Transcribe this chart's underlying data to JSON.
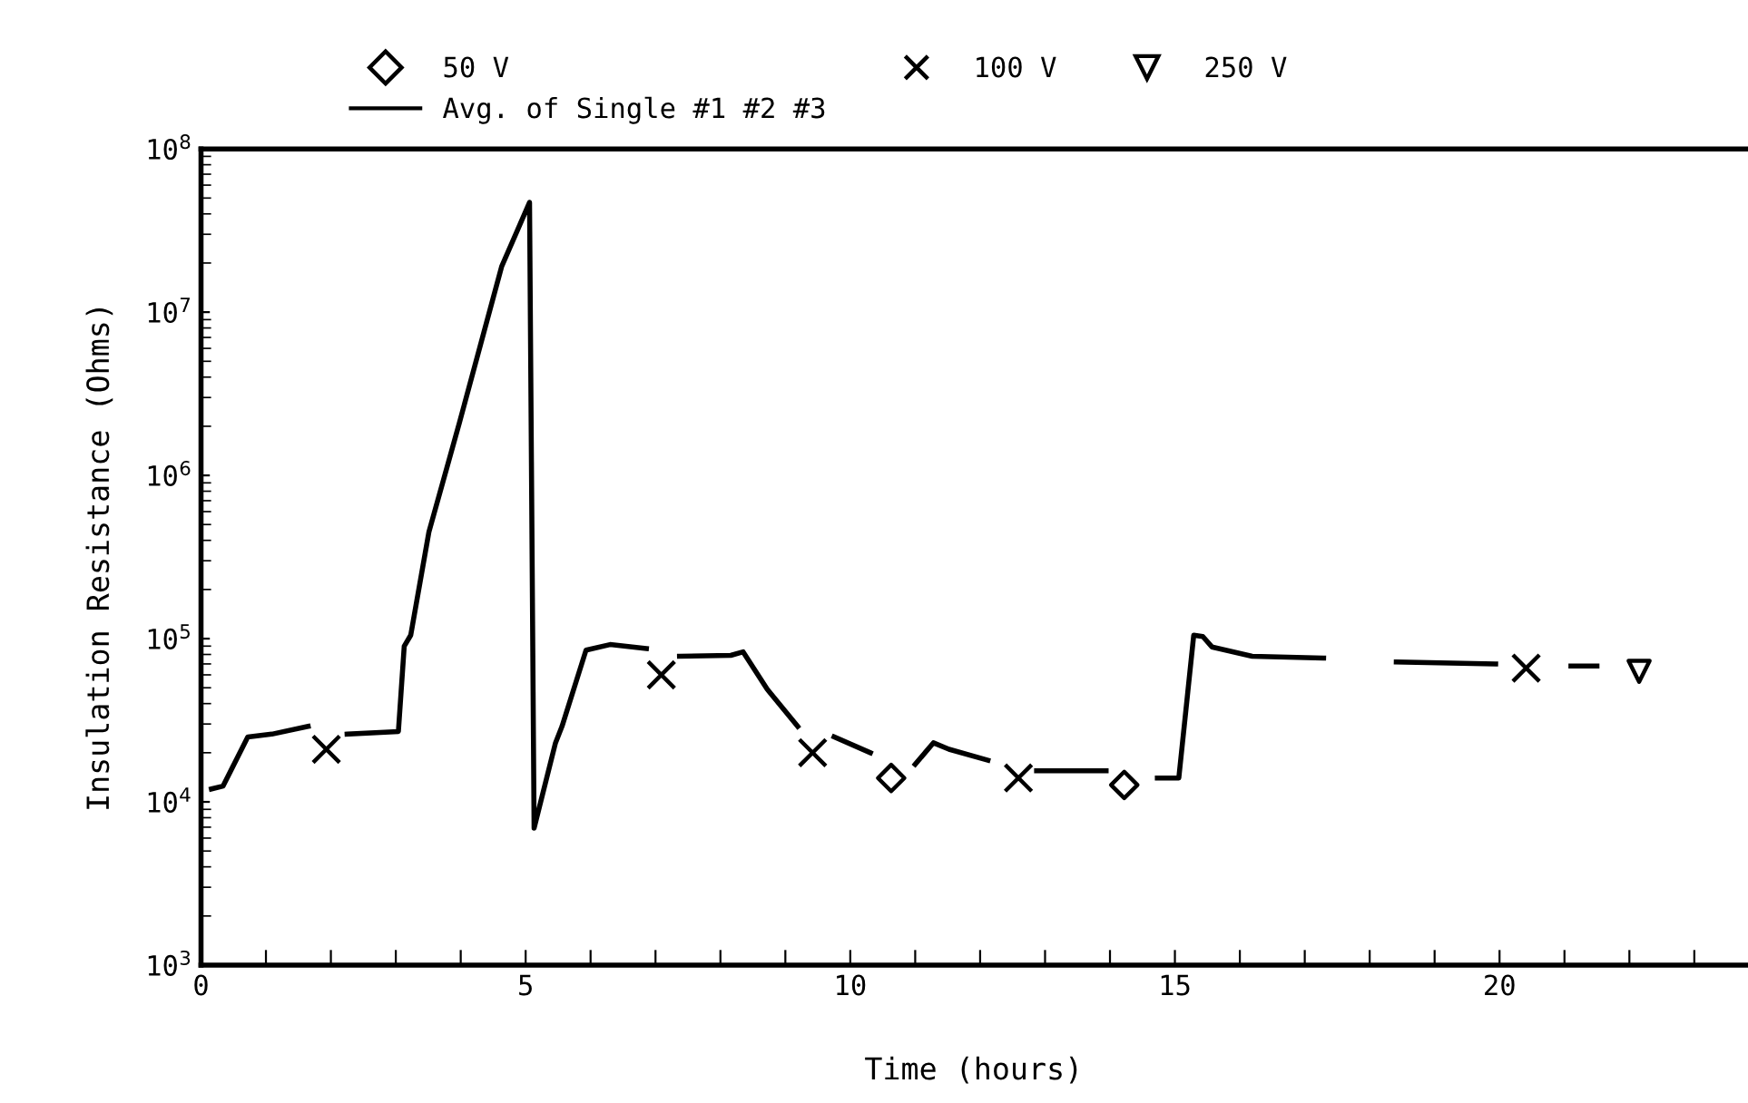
{
  "chart_data": {
    "type": "line",
    "xlabel": "Time (hours)",
    "ylabel": "Insulation Resistance (Ohms)",
    "log": "y",
    "xlim": [
      0,
      23.8
    ],
    "ylim": [
      1000,
      100000000
    ],
    "xticks": [
      0,
      {
        "value": 1,
        "label": null
      },
      {
        "value": 2,
        "label": null
      },
      {
        "value": 3,
        "label": null
      },
      {
        "value": 4,
        "label": null
      },
      5,
      {
        "value": 6,
        "label": null
      },
      {
        "value": 7,
        "label": null
      },
      {
        "value": 8,
        "label": null
      },
      {
        "value": 9,
        "label": null
      },
      10,
      {
        "value": 11,
        "label": null
      },
      {
        "value": 12,
        "label": null
      },
      {
        "value": 13,
        "label": null
      },
      {
        "value": 14,
        "label": null
      },
      15,
      {
        "value": 16,
        "label": null
      },
      {
        "value": 17,
        "label": null
      },
      {
        "value": 18,
        "label": null
      },
      {
        "value": 19,
        "label": null
      },
      20,
      {
        "value": 21,
        "label": null
      },
      {
        "value": 22,
        "label": null
      },
      {
        "value": 23,
        "label": null
      }
    ],
    "yticks": [
      {
        "value": 1000,
        "label": "10$^{3}$"
      },
      {
        "value": 10000,
        "label": "10$^{4}$"
      },
      {
        "value": 100000,
        "label": "10$^{5}$"
      },
      {
        "value": 1000000,
        "label": "10$^{6}$"
      },
      {
        "value": 10000000,
        "label": "10$^{7}$"
      },
      {
        "value": 100000000,
        "label": "10$^{8}$"
      }
    ],
    "grid": false,
    "legend": "top",
    "series": [
      {
        "name": "50 V",
        "type": "scatter",
        "marker": "diamond",
        "color": "#000000",
        "x": [
          10.63,
          14.22
        ],
        "values": [
          14000,
          12700
        ]
      },
      {
        "name": "100 V",
        "type": "scatter",
        "marker": "cross",
        "color": "#000000",
        "x": [
          1.93,
          7.09,
          9.42,
          12.59,
          20.41
        ],
        "values": [
          21000,
          60000,
          20000,
          14000,
          66000
        ]
      },
      {
        "name": "250 V",
        "type": "scatter",
        "marker": "triangle",
        "color": "#000000",
        "x": [
          22.15
        ],
        "values": [
          63000
        ]
      },
      {
        "name": "Avg. of Single #1 #2 #3",
        "marker": "none",
        "line_style": "solid",
        "color": "#000000",
        "x": [
          0.16,
          0.34,
          0.72,
          1.09,
          1.65,
          1.8,
          2.25,
          3.04,
          3.13,
          3.23,
          3.51,
          3.98,
          4.63,
          5.06,
          5.13,
          5.46,
          5.56,
          5.93,
          6.3,
          6.86,
          7.0,
          7.37,
          8.16,
          8.35,
          8.72,
          9.19,
          9.3,
          9.75,
          10.31,
          10.5,
          11.0,
          11.28,
          11.52,
          12.12,
          12.4,
          12.87,
          13.94,
          14.1,
          14.73,
          15.06,
          15.29,
          15.43,
          15.57,
          16.19,
          17.29,
          17.8,
          18.41,
          19.94,
          20.2,
          21.1,
          21.5
        ],
        "values": [
          12000,
          12500,
          25000,
          26000,
          29000,
          null,
          26000,
          27000,
          90000,
          105000,
          450000,
          2100000,
          19000000,
          47000000,
          6900,
          23000,
          29000,
          85000,
          92000,
          87000,
          null,
          78000,
          79000,
          83000,
          49000,
          29000,
          null,
          25000,
          20000,
          null,
          17000,
          23000,
          21000,
          18000,
          null,
          15500,
          15500,
          null,
          14000,
          14000,
          105000,
          103000,
          89000,
          78000,
          76000,
          null,
          72000,
          70000,
          null,
          68000,
          68000
        ]
      }
    ]
  }
}
